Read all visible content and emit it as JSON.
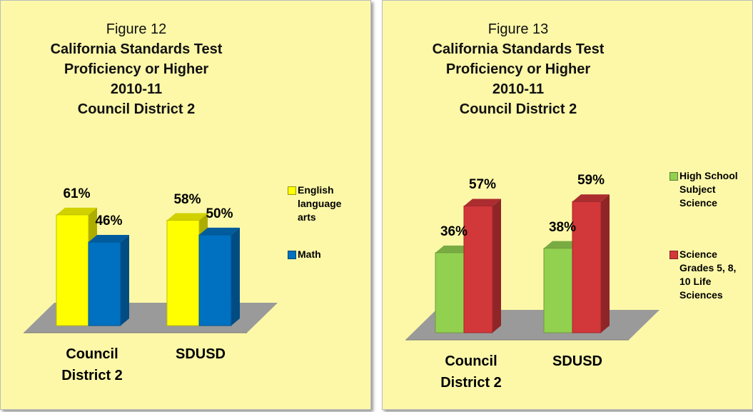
{
  "chart_data": [
    {
      "type": "bar3d",
      "figure": "Figure 12",
      "title": [
        "California Standards Test",
        "Proficiency or Higher",
        "2010-11",
        "Council District 2"
      ],
      "categories": [
        "Council District 2",
        "SDUSD"
      ],
      "series": [
        {
          "name": "English language arts",
          "color": "#ffff00",
          "values": [
            61,
            58
          ],
          "value_labels": [
            "61%",
            "58%"
          ]
        },
        {
          "name": "Math",
          "color": "#0070c0",
          "values": [
            46,
            50
          ],
          "value_labels": [
            "46%",
            "50%"
          ]
        }
      ],
      "ylim": [
        0,
        70
      ],
      "legend": "right"
    },
    {
      "type": "bar3d",
      "figure": "Figure 13",
      "title": [
        "California Standards Test",
        "Proficiency or Higher",
        "2010-11",
        "Council District 2"
      ],
      "categories": [
        "Council District 2",
        "SDUSD"
      ],
      "series": [
        {
          "name": "High School Subject Science",
          "color": "#92d050",
          "values": [
            36,
            38
          ],
          "value_labels": [
            "36%",
            "38%"
          ]
        },
        {
          "name": "Science Grades 5, 8, 10 Life Sciences",
          "color": "#d2373a",
          "values": [
            57,
            59
          ],
          "value_labels": [
            "57%",
            "59%"
          ]
        }
      ],
      "ylim": [
        0,
        70
      ],
      "legend": "right"
    }
  ]
}
